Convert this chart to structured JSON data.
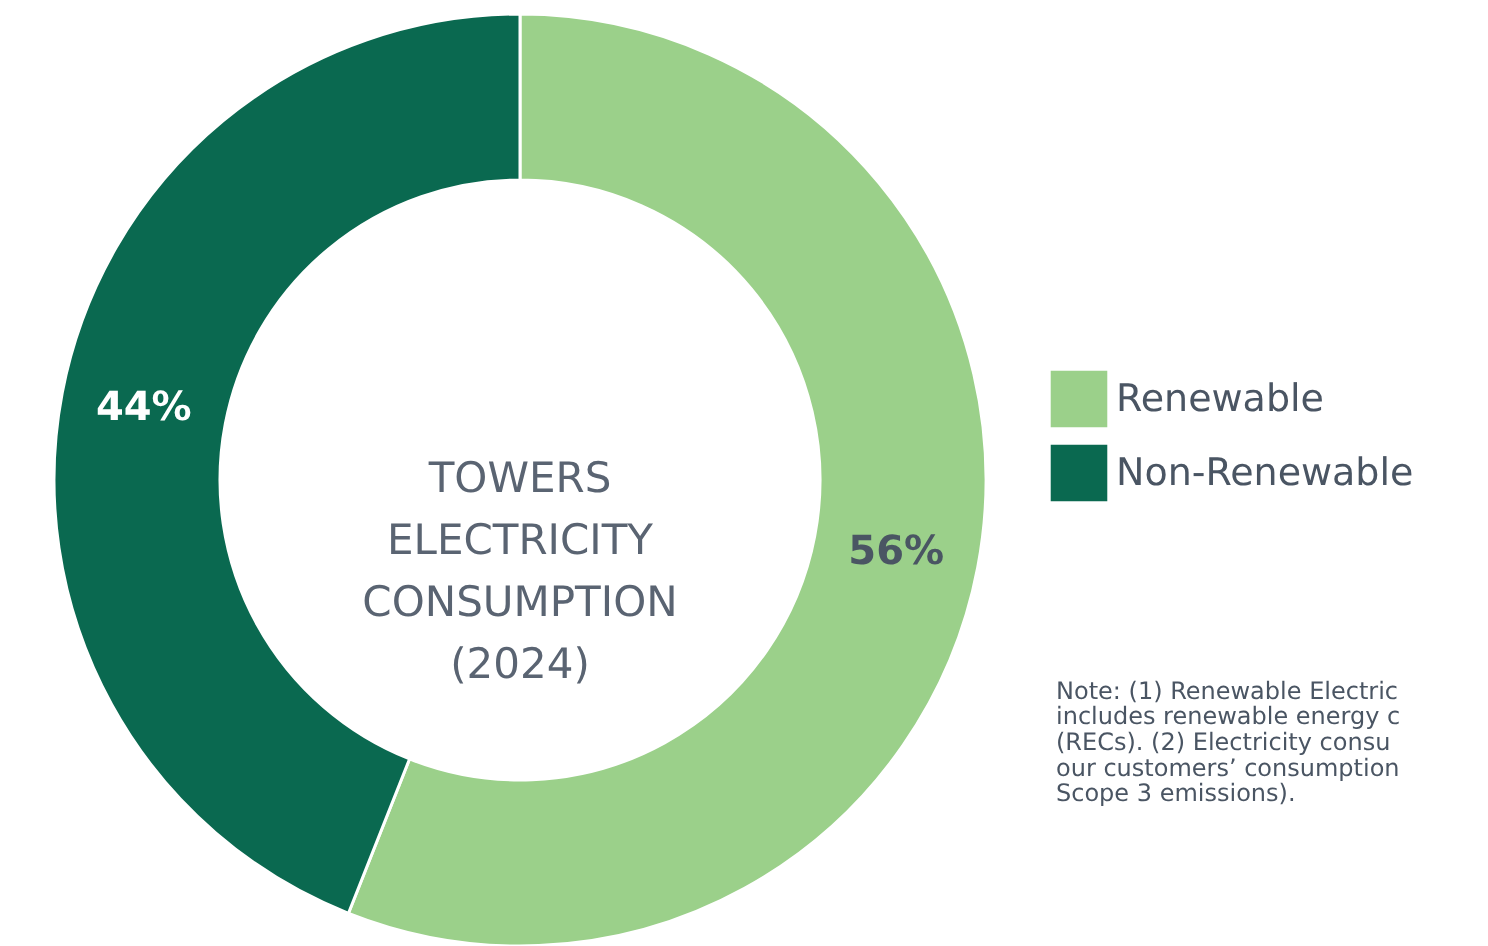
{
  "chart_data": {
    "type": "donut",
    "title": "TOWERS ELECTRICITY CONSUMPTION (2024)",
    "categories": [
      "Renewable",
      "Non-Renewable"
    ],
    "values": [
      56,
      44
    ],
    "colors": [
      "#9bd08a",
      "#0a6950"
    ],
    "value_labels": [
      "56%",
      "44%"
    ],
    "legend": "right",
    "annotations": [
      "Note: (1) Renewable Electric",
      "includes renewable energy c",
      "(RECs). (2) Electricity consu",
      "our customers’ consumption",
      "Scope 3 emissions)."
    ]
  }
}
